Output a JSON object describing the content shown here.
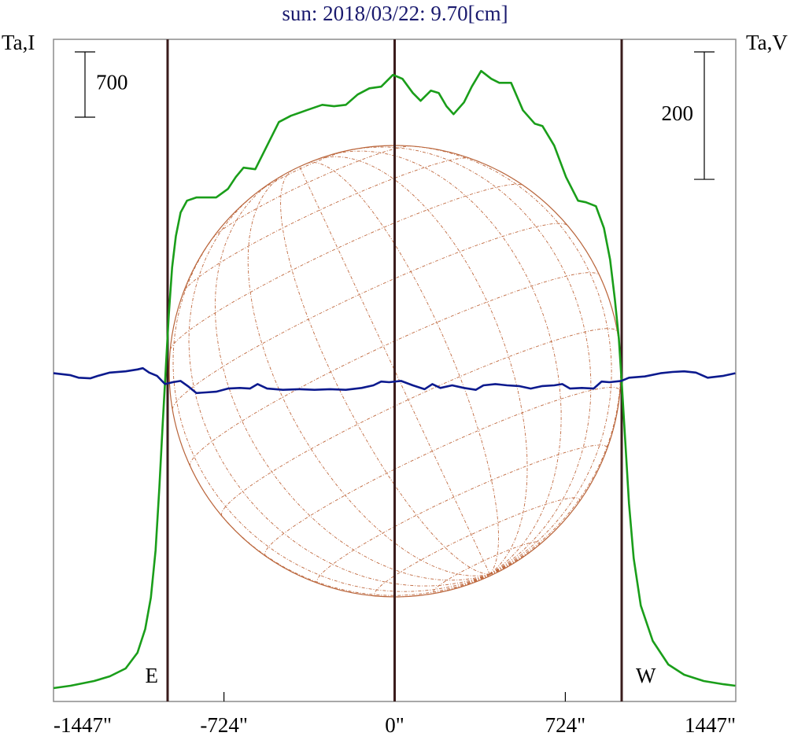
{
  "chart_data": {
    "type": "line",
    "title": "sun: 2018/03/22: 9.70[cm]",
    "xlim": [
      -1447,
      1447
    ],
    "xticks": [
      {
        "value": -1447,
        "label": "-1447\""
      },
      {
        "value": -724,
        "label": "-724\""
      },
      {
        "value": 0,
        "label": "0\""
      },
      {
        "value": 724,
        "label": "724\""
      },
      {
        "value": 1447,
        "label": "1447\""
      }
    ],
    "ylim": [
      0,
      7100
    ],
    "y2lim": [
      -496,
      543
    ],
    "vlines": [
      -963,
      0,
      963
    ],
    "annotations": [
      "E",
      "W"
    ],
    "i_scale_bar": 700,
    "v_scale_bar": 200,
    "series": [
      {
        "name": "Ta,I",
        "color": "#1a9e1a",
        "x": [
          -1447,
          -1375,
          -1275,
          -1208,
          -1141,
          -1091,
          -1058,
          -1034,
          -1014,
          -998,
          -984,
          -971,
          -958,
          -944,
          -928,
          -908,
          -881,
          -841,
          -757,
          -707,
          -674,
          -641,
          -591,
          -541,
          -491,
          -440,
          -374,
          -307,
          -257,
          -207,
          -157,
          -107,
          -57,
          -7,
          33,
          77,
          110,
          154,
          187,
          220,
          250,
          294,
          327,
          367,
          410,
          444,
          494,
          544,
          594,
          627,
          677,
          727,
          778,
          811,
          854,
          888,
          914,
          934,
          951,
          964,
          978,
          994,
          1014,
          1044,
          1095,
          1161,
          1228,
          1311,
          1395,
          1445
        ],
        "values": [
          143,
          169,
          219,
          270,
          354,
          523,
          776,
          1113,
          1619,
          2293,
          2967,
          3557,
          4148,
          4653,
          4991,
          5243,
          5370,
          5404,
          5404,
          5496,
          5623,
          5724,
          5707,
          5960,
          6213,
          6280,
          6339,
          6398,
          6382,
          6398,
          6508,
          6575,
          6592,
          6719,
          6677,
          6525,
          6441,
          6550,
          6525,
          6382,
          6297,
          6424,
          6592,
          6761,
          6677,
          6634,
          6634,
          6339,
          6196,
          6171,
          5960,
          5623,
          5370,
          5353,
          5311,
          5075,
          4738,
          4316,
          3895,
          3389,
          2799,
          2124,
          1534,
          1028,
          649,
          396,
          287,
          219,
          185,
          169
        ]
      },
      {
        "name": "Ta,V",
        "color": "#0c1a8e",
        "axis": "y2",
        "x": [
          -1447,
          -1375,
          -1341,
          -1291,
          -1258,
          -1208,
          -1141,
          -1091,
          -1068,
          -1041,
          -1008,
          -974,
          -941,
          -908,
          -874,
          -841,
          -801,
          -757,
          -707,
          -657,
          -614,
          -581,
          -541,
          -474,
          -407,
          -340,
          -274,
          -207,
          -140,
          -90,
          -57,
          -23,
          27,
          77,
          127,
          160,
          194,
          244,
          294,
          344,
          377,
          427,
          477,
          527,
          577,
          627,
          677,
          711,
          744,
          794,
          844,
          878,
          911,
          961,
          994,
          1061,
          1128,
          1178,
          1228,
          1278,
          1328,
          1395,
          1445
        ],
        "values": [
          19,
          16,
          12,
          11,
          15,
          20,
          22,
          25,
          27,
          20,
          15,
          2,
          5,
          7,
          -2,
          -12,
          -11,
          -10,
          -5,
          -4,
          -5,
          2,
          -5,
          -7,
          -6,
          -7,
          -6,
          -7,
          -4,
          0,
          6,
          5,
          7,
          0,
          -6,
          2,
          -4,
          0,
          -4,
          -7,
          0,
          2,
          0,
          -1,
          -5,
          -1,
          0,
          2,
          -5,
          -4,
          -5,
          6,
          5,
          7,
          12,
          14,
          19,
          21,
          22,
          20,
          12,
          15,
          19
        ]
      }
    ]
  }
}
